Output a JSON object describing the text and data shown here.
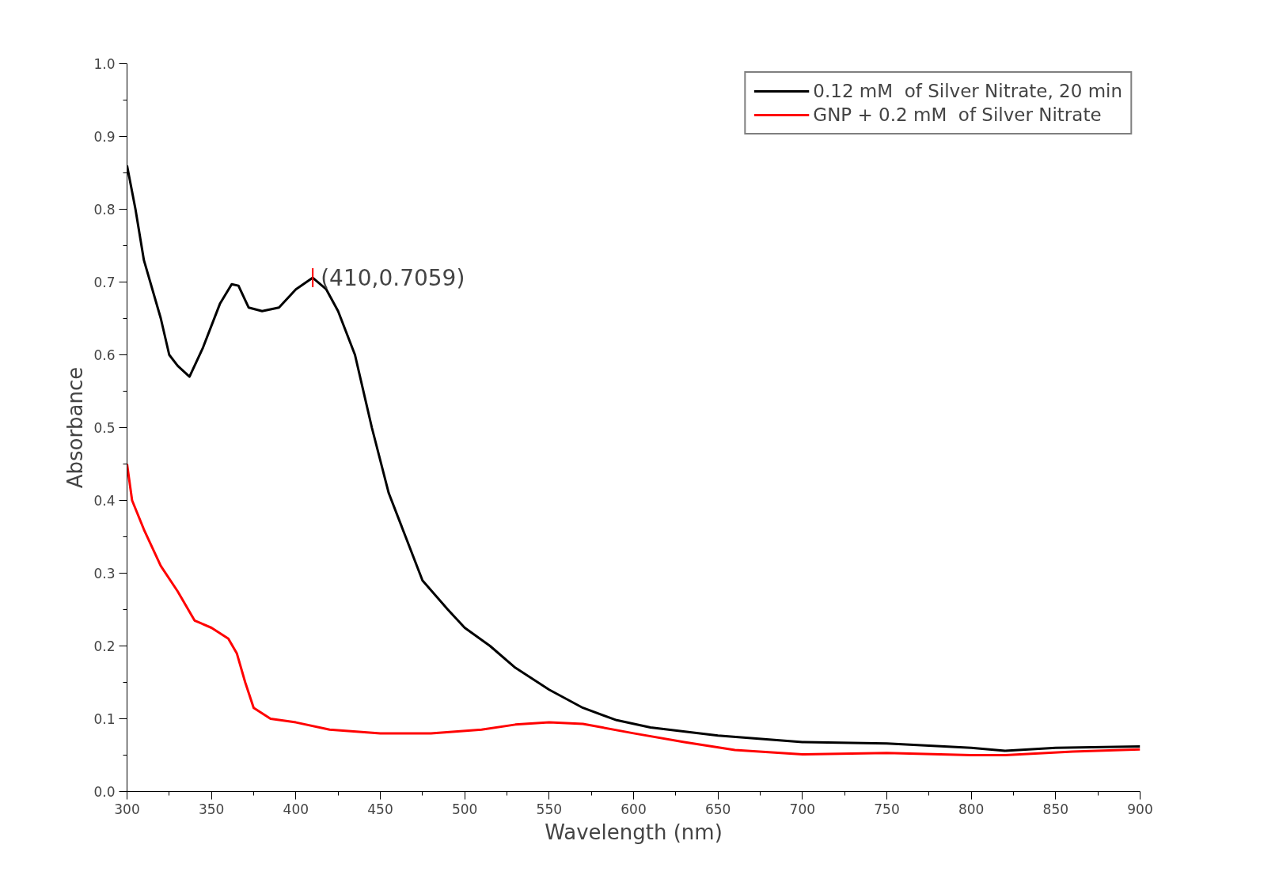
{
  "chart_data": {
    "type": "line",
    "xlabel": "Wavelength (nm)",
    "ylabel": "Absorbance",
    "xlim": [
      300,
      900
    ],
    "ylim": [
      0.0,
      1.0
    ],
    "xticks": [
      300,
      350,
      400,
      450,
      500,
      550,
      600,
      650,
      700,
      750,
      800,
      850,
      900
    ],
    "yticks": [
      {
        "value": 0.0,
        "label": "0.0"
      },
      {
        "value": 0.1,
        "label": "0.1"
      },
      {
        "value": 0.2,
        "label": "0.2"
      },
      {
        "value": 0.3,
        "label": "0.3"
      },
      {
        "value": 0.4,
        "label": "0.4"
      },
      {
        "value": 0.5,
        "label": "0.5"
      },
      {
        "value": 0.6,
        "label": "0.6"
      },
      {
        "value": 0.7,
        "label": "0.7"
      },
      {
        "value": 0.8,
        "label": "0.8"
      },
      {
        "value": 0.9,
        "label": "0.9"
      },
      {
        "value": 1.0,
        "label": "1.0"
      }
    ],
    "grid": false,
    "legend": "top right",
    "line_style": "solid",
    "marker": "none",
    "annotations": [
      {
        "text": "(410,0.7059)",
        "x": 410,
        "y": 0.7059
      }
    ],
    "series": [
      {
        "name": "0.12 mM  of Silver Nitrate, 20 min",
        "color": "#000000",
        "x": [
          300,
          305,
          310,
          320,
          325,
          330,
          337,
          345,
          355,
          362,
          366,
          372,
          380,
          390,
          400,
          410,
          418,
          425,
          435,
          445,
          455,
          465,
          475,
          490,
          500,
          515,
          530,
          550,
          570,
          590,
          610,
          650,
          700,
          750,
          800,
          820,
          850,
          900
        ],
        "values": [
          0.86,
          0.8,
          0.73,
          0.65,
          0.6,
          0.585,
          0.57,
          0.61,
          0.67,
          0.697,
          0.695,
          0.665,
          0.66,
          0.665,
          0.69,
          0.7059,
          0.69,
          0.66,
          0.6,
          0.5,
          0.41,
          0.35,
          0.29,
          0.25,
          0.225,
          0.2,
          0.17,
          0.14,
          0.115,
          0.098,
          0.088,
          0.077,
          0.068,
          0.066,
          0.06,
          0.056,
          0.06,
          0.062
        ]
      },
      {
        "name": "GNP + 0.2 mM  of Silver Nitrate",
        "color": "#ff0000",
        "x": [
          300,
          303,
          310,
          320,
          330,
          340,
          350,
          360,
          365,
          370,
          375,
          385,
          400,
          420,
          450,
          480,
          510,
          530,
          550,
          570,
          600,
          630,
          660,
          700,
          750,
          800,
          820,
          860,
          900
        ],
        "values": [
          0.45,
          0.4,
          0.36,
          0.31,
          0.275,
          0.235,
          0.225,
          0.21,
          0.19,
          0.15,
          0.115,
          0.1,
          0.095,
          0.085,
          0.08,
          0.08,
          0.085,
          0.092,
          0.095,
          0.093,
          0.08,
          0.068,
          0.057,
          0.051,
          0.053,
          0.05,
          0.05,
          0.055,
          0.058
        ]
      }
    ]
  }
}
